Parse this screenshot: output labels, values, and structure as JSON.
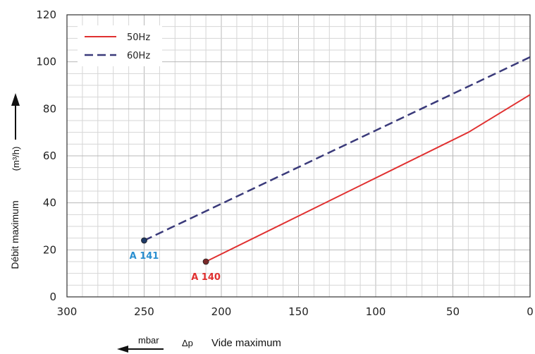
{
  "chart_data": {
    "type": "line",
    "title": "",
    "x_axis": {
      "label": "Vide maximum",
      "symbol": "Δp",
      "unit": "mbar",
      "range": [
        300,
        0
      ],
      "reversed": true,
      "ticks": [
        "300",
        "250",
        "200",
        "150",
        "100",
        "50",
        "0"
      ]
    },
    "y_axis": {
      "label": "Débit maximum",
      "unit": "(m³/h)",
      "range": [
        0,
        120
      ],
      "ticks": [
        "0",
        "20",
        "40",
        "60",
        "80",
        "100",
        "120"
      ]
    },
    "grid": true,
    "legend": {
      "position": "top-left",
      "entries": [
        {
          "name": "50Hz",
          "style": "solid",
          "color": "#e03030"
        },
        {
          "name": "60Hz",
          "style": "dashed",
          "color": "#3a3a7a"
        }
      ]
    },
    "series": [
      {
        "name": "50Hz",
        "color": "#e03030",
        "points": [
          {
            "x": 210,
            "y": 15
          },
          {
            "x": 40,
            "y": 70
          },
          {
            "x": 0,
            "y": 86
          }
        ]
      },
      {
        "name": "60Hz",
        "color": "#3a3a7a",
        "points": [
          {
            "x": 250,
            "y": 24
          },
          {
            "x": 0,
            "y": 102
          }
        ]
      }
    ],
    "annotations": [
      {
        "text": "A 141",
        "x": 250,
        "y": 24,
        "color": "#2a8fd0",
        "marker_color": "#1f3a66"
      },
      {
        "text": "A 140",
        "x": 210,
        "y": 15,
        "color": "#e03030",
        "marker_color": "#7a2a2a"
      }
    ]
  }
}
